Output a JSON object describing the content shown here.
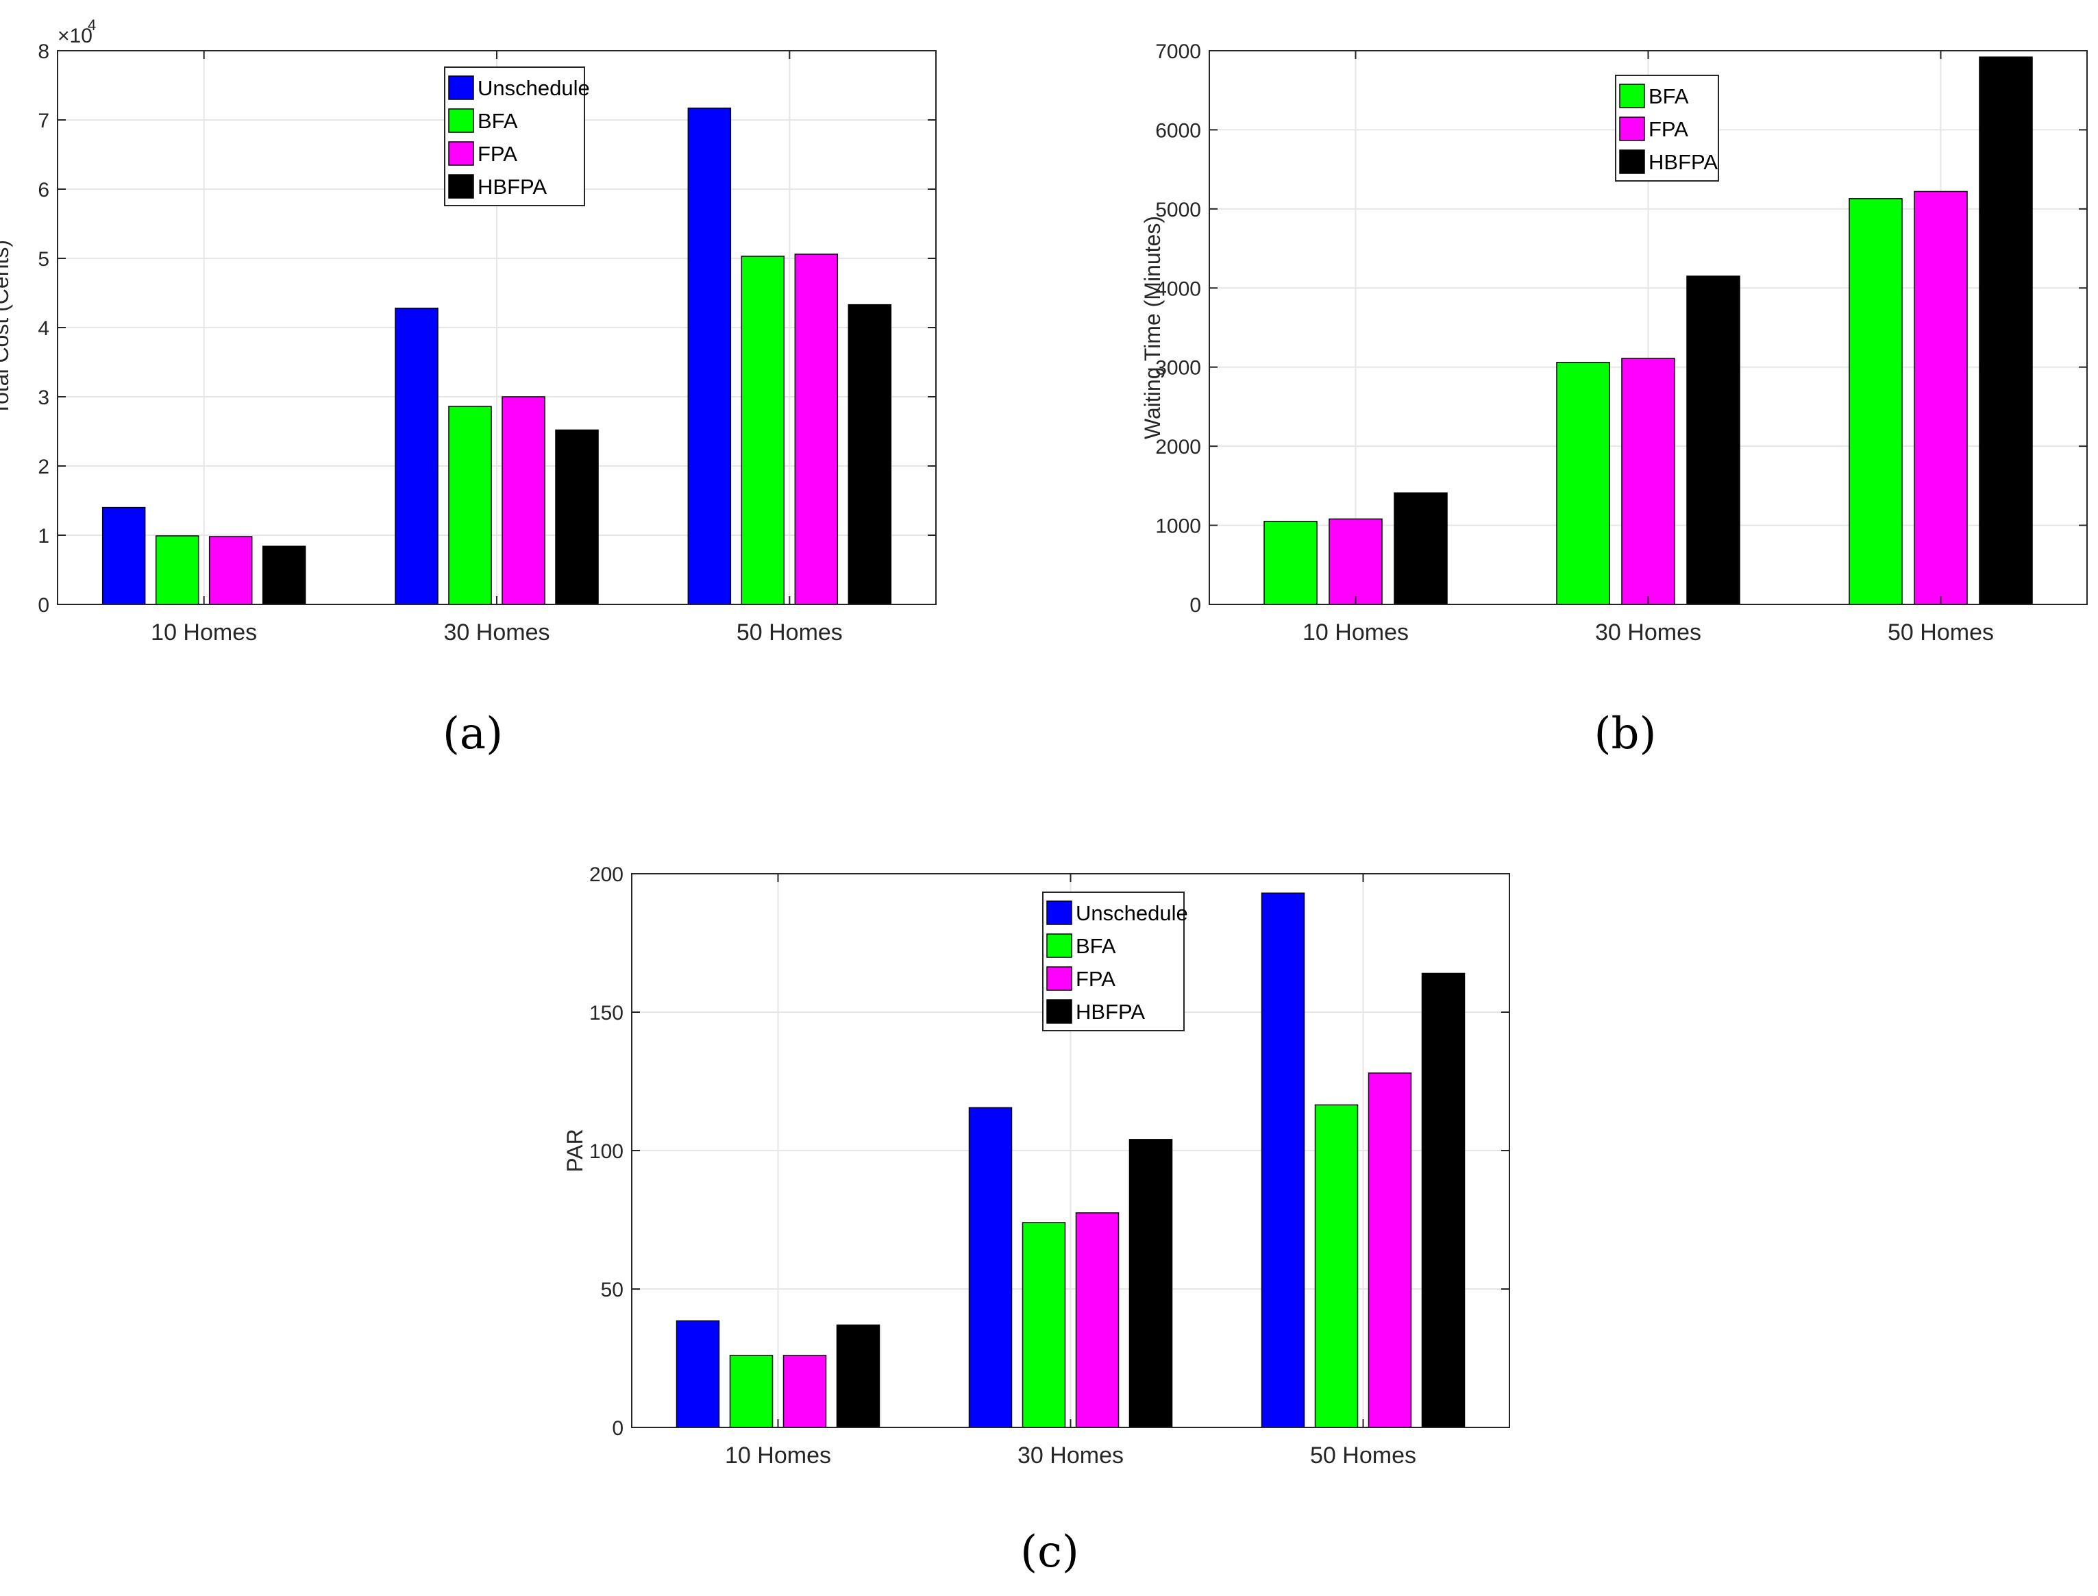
{
  "colors": {
    "Unschedule": "#0000ff",
    "BFA": "#00ff00",
    "FPA": "#ff00ff",
    "HBFPA": "#000000"
  },
  "chart_data": [
    {
      "id": "a",
      "type": "bar",
      "caption": "(a)",
      "categories": [
        "10 Homes",
        "30 Homes",
        "50 Homes"
      ],
      "series": [
        {
          "name": "Unschedule",
          "values": [
            14000,
            42800,
            71700
          ]
        },
        {
          "name": "BFA",
          "values": [
            9900,
            28600,
            50300
          ]
        },
        {
          "name": "FPA",
          "values": [
            9800,
            30000,
            50600
          ]
        },
        {
          "name": "HBFPA",
          "values": [
            8400,
            25200,
            43300
          ]
        }
      ],
      "ylabel": "Total Cost (Cents)",
      "xlabel": "",
      "ylim": [
        0,
        80000
      ],
      "yticks": [
        0,
        10000,
        20000,
        30000,
        40000,
        50000,
        60000,
        70000,
        80000
      ],
      "ytick_labels": [
        "0",
        "1",
        "2",
        "3",
        "4",
        "5",
        "6",
        "7",
        "8"
      ],
      "yscale_label": "×10",
      "yscale_exponent": "4",
      "grid": true,
      "legend": [
        "Unschedule",
        "BFA",
        "FPA",
        "HBFPA"
      ],
      "legend_position": "top-center"
    },
    {
      "id": "b",
      "type": "bar",
      "caption": "(b)",
      "categories": [
        "10 Homes",
        "30 Homes",
        "50 Homes"
      ],
      "series": [
        {
          "name": "BFA",
          "values": [
            1050,
            3060,
            5130
          ]
        },
        {
          "name": "FPA",
          "values": [
            1080,
            3110,
            5220
          ]
        },
        {
          "name": "HBFPA",
          "values": [
            1410,
            4150,
            6920
          ]
        }
      ],
      "ylabel": "Waiting Time (Minutes)",
      "xlabel": "",
      "ylim": [
        0,
        7000
      ],
      "yticks": [
        0,
        1000,
        2000,
        3000,
        4000,
        5000,
        6000,
        7000
      ],
      "ytick_labels": [
        "0",
        "1000",
        "2000",
        "3000",
        "4000",
        "5000",
        "6000",
        "7000"
      ],
      "grid": true,
      "legend": [
        "BFA",
        "FPA",
        "HBFPA"
      ],
      "legend_position": "top-center"
    },
    {
      "id": "c",
      "type": "bar",
      "caption": "(c)",
      "categories": [
        "10 Homes",
        "30 Homes",
        "50 Homes"
      ],
      "series": [
        {
          "name": "Unschedule",
          "values": [
            38.5,
            115.5,
            193
          ]
        },
        {
          "name": "BFA",
          "values": [
            26,
            74,
            116.5
          ]
        },
        {
          "name": "FPA",
          "values": [
            26,
            77.5,
            128
          ]
        },
        {
          "name": "HBFPA",
          "values": [
            37,
            104,
            164
          ]
        }
      ],
      "ylabel": "PAR",
      "xlabel": "",
      "ylim": [
        0,
        200
      ],
      "yticks": [
        0,
        50,
        100,
        150,
        200
      ],
      "ytick_labels": [
        "0",
        "50",
        "100",
        "150",
        "200"
      ],
      "grid": true,
      "legend": [
        "Unschedule",
        "BFA",
        "FPA",
        "HBFPA"
      ],
      "legend_position": "top-right"
    }
  ]
}
